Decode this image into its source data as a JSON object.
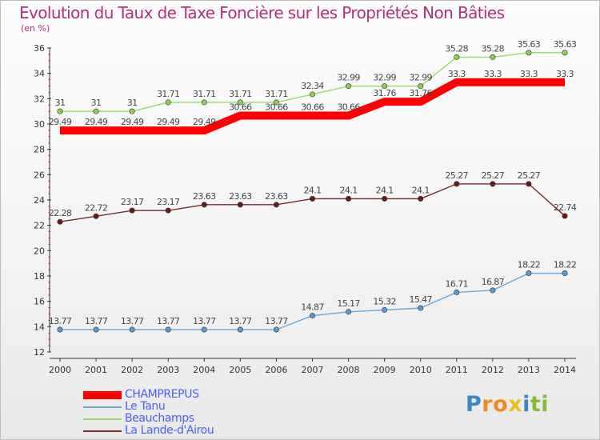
{
  "title": "Evolution du Taux de Taxe Foncière sur les Propriétés Non Bâties",
  "subtitle": "(en %)",
  "logo": {
    "text": "Proxiti",
    "letters": [
      {
        "ch": "P",
        "color": "#3a86c8"
      },
      {
        "ch": "r",
        "color": "#f08a1c"
      },
      {
        "ch": "o",
        "color": "#f08a1c"
      },
      {
        "ch": "x",
        "color": "#e8c020"
      },
      {
        "ch": "i",
        "color": "#3a86c8"
      },
      {
        "ch": "t",
        "color": "#8ab83a"
      },
      {
        "ch": "i",
        "color": "#8ab83a"
      }
    ]
  },
  "chart_data": {
    "type": "line",
    "title": "Evolution du Taux de Taxe Foncière sur les Propriétés Non Bâties",
    "ylabel": "(en %)",
    "xlabel": "",
    "x": [
      "2000",
      "2001",
      "2002",
      "2003",
      "2004",
      "2005",
      "2006",
      "2007",
      "2008",
      "2009",
      "2010",
      "2011",
      "2012",
      "2013",
      "2014"
    ],
    "ylim": [
      12,
      36
    ],
    "yticks": [
      12,
      14,
      16,
      18,
      20,
      22,
      24,
      26,
      28,
      30,
      32,
      34,
      36
    ],
    "grid": false,
    "legend_position": "bottom-left",
    "series": [
      {
        "name": "CHAMPREPUS",
        "color": "#ff0000",
        "width": 10,
        "marker": false,
        "values": [
          29.49,
          29.49,
          29.49,
          29.49,
          29.49,
          30.66,
          30.66,
          30.66,
          30.66,
          31.76,
          31.76,
          33.3,
          33.3,
          33.3,
          33.3
        ],
        "labels": [
          "29.49",
          "29.49",
          "29.49",
          "29.49",
          "29.49",
          "30.66",
          "30.66",
          "30.66",
          "30.66",
          "31.76",
          "31.76",
          "33.3",
          "33.3",
          "33.3",
          "33.3"
        ]
      },
      {
        "name": "Le Tanu",
        "color": "#6aa8d8",
        "width": 1.4,
        "marker": true,
        "markerColor": "#5b9bd5",
        "values": [
          13.77,
          13.77,
          13.77,
          13.77,
          13.77,
          13.77,
          13.77,
          14.87,
          15.17,
          15.32,
          15.47,
          16.71,
          16.87,
          18.22,
          18.22
        ],
        "labels": [
          "13.77",
          "13.77",
          "13.77",
          "13.77",
          "13.77",
          "13.77",
          "13.77",
          "14.87",
          "15.17",
          "15.32",
          "15.47",
          "16.71",
          "16.87",
          "18.22",
          "18.22"
        ]
      },
      {
        "name": "Beauchamps",
        "color": "#9ad86a",
        "width": 1.4,
        "marker": true,
        "markerColor": "#8cd04f",
        "values": [
          31,
          31,
          31,
          31.71,
          31.71,
          31.71,
          31.71,
          32.34,
          32.99,
          32.99,
          32.99,
          35.28,
          35.28,
          35.63,
          35.63
        ],
        "labels": [
          "31",
          "31",
          "31",
          "31.71",
          "31.71",
          "31.71",
          "31.71",
          "32.34",
          "32.99",
          "32.99",
          "32.99",
          "35.28",
          "35.28",
          "35.63",
          "35.63"
        ]
      },
      {
        "name": "La Lande-d'Airou",
        "color": "#7a2a2a",
        "width": 1.4,
        "marker": true,
        "markerColor": "#6a1a1a",
        "values": [
          22.28,
          22.72,
          23.17,
          23.17,
          23.63,
          23.63,
          23.63,
          24.1,
          24.1,
          24.1,
          24.1,
          25.27,
          25.27,
          25.27,
          22.74
        ],
        "labels": [
          "22.28",
          "22.72",
          "23.17",
          "23.17",
          "23.63",
          "23.63",
          "23.63",
          "24.1",
          "24.1",
          "24.1",
          "24.1",
          "25.27",
          "25.27",
          "25.27",
          "22.74"
        ]
      }
    ]
  }
}
